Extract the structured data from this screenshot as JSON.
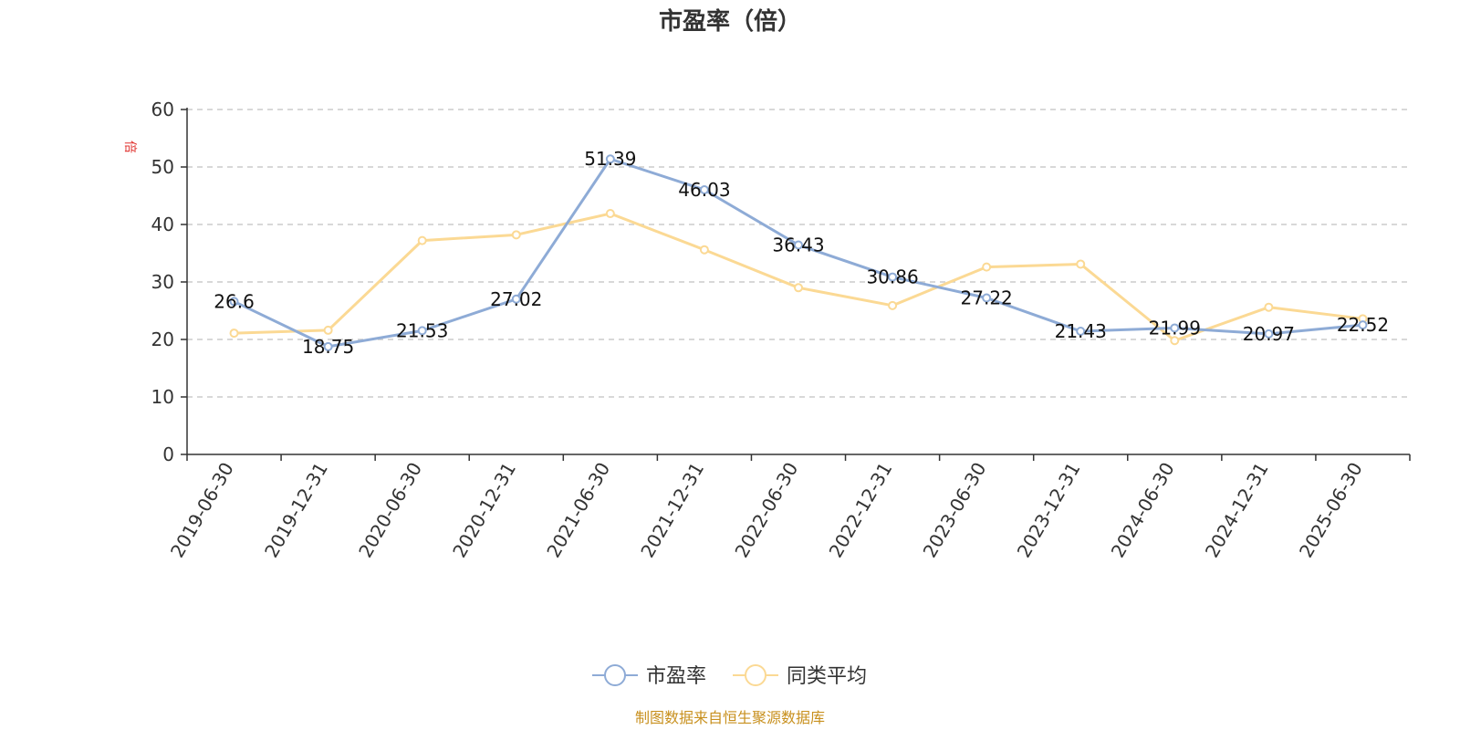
{
  "chart_data": {
    "type": "line",
    "title": "市盈率（倍）",
    "ylabel": "倍",
    "categories": [
      "2019-06-30",
      "2019-12-31",
      "2020-06-30",
      "2020-12-31",
      "2021-06-30",
      "2021-12-31",
      "2022-06-30",
      "2022-12-31",
      "2023-06-30",
      "2023-12-31",
      "2024-06-30",
      "2024-12-31",
      "2025-06-30"
    ],
    "ylim": [
      0,
      60
    ],
    "yticks": [
      0,
      10,
      20,
      30,
      40,
      50,
      60
    ],
    "grid": true,
    "legend_position": "bottom",
    "series": [
      {
        "name": "市盈率",
        "color": "#8eabd6",
        "values": [
          26.6,
          18.75,
          21.53,
          27.02,
          51.39,
          46.03,
          36.43,
          30.86,
          27.22,
          21.43,
          21.99,
          20.97,
          22.52
        ],
        "labels": [
          "26.6",
          "18.75",
          "21.53",
          "27.02",
          "51.39",
          "46.03",
          "36.43",
          "30.86",
          "27.22",
          "21.43",
          "21.99",
          "20.97",
          "22.52"
        ]
      },
      {
        "name": "同类平均",
        "color": "#fbd994",
        "values": [
          21.1,
          21.6,
          37.2,
          38.2,
          41.9,
          35.6,
          29.0,
          25.9,
          32.6,
          33.1,
          19.8,
          25.6,
          23.6
        ]
      }
    ],
    "source": "制图数据来自恒生聚源数据库"
  },
  "colors": {
    "ylabel": "#e0332f",
    "source": "#c8901e",
    "axis": "#333333",
    "grid": "#cccccc"
  }
}
